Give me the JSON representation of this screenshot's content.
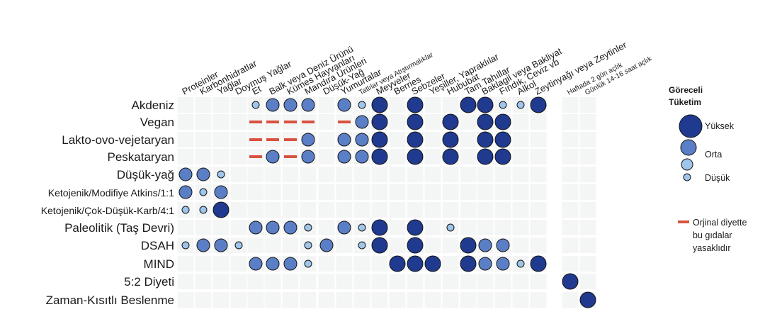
{
  "chart_data": {
    "type": "table",
    "level_scale": {
      "1": "Düşük",
      "2": "Orta",
      "3": "Yüksek"
    },
    "columns": [
      "Proteinler",
      "Karbonhidratlar",
      "Yağlar",
      "Doymuş Yağlar",
      "Et",
      "Balk veya Deniz Ürünü",
      "Kümes Hayvanları",
      "Mandıra Ürünleri",
      "Düşük-Yağ",
      "Yumurtalar",
      "Tatlılar veya Atıştırmalıklar",
      "Meyveler",
      "Berries",
      "Sebzeler",
      "Yeşiller, Yapraklılar",
      "Hububat",
      "Tam Tahıllar",
      "Baklagil veya Bakliyat",
      "Fındık, Ceviz vb",
      "Alkol",
      "Zeytinyağı veya Zeytinler",
      "Haftada 2 gün açlık",
      "Günlük 14-16 saat açlık"
    ],
    "rows": [
      {
        "name": "Akdeniz",
        "values": [
          0,
          0,
          0,
          0,
          1,
          2,
          2,
          2,
          0,
          2,
          1,
          3,
          0,
          3,
          0,
          0,
          3,
          3,
          1,
          1,
          3,
          0,
          0
        ]
      },
      {
        "name": "Vegan",
        "values": [
          0,
          0,
          0,
          0,
          -1,
          -1,
          -1,
          -1,
          0,
          -1,
          2,
          3,
          0,
          3,
          0,
          3,
          0,
          3,
          3,
          0,
          0,
          0,
          0
        ]
      },
      {
        "name": "Lakto-ovo-vejetaryan",
        "values": [
          0,
          0,
          0,
          0,
          -1,
          -1,
          -1,
          2,
          0,
          2,
          2,
          3,
          0,
          3,
          0,
          3,
          0,
          3,
          3,
          0,
          0,
          0,
          0
        ]
      },
      {
        "name": "Peskataryan",
        "values": [
          0,
          0,
          0,
          0,
          -1,
          2,
          -1,
          2,
          0,
          2,
          2,
          3,
          0,
          3,
          0,
          3,
          0,
          3,
          3,
          0,
          0,
          0,
          0
        ]
      },
      {
        "name": "Düşük-yağ",
        "values": [
          2,
          2,
          1,
          0,
          0,
          0,
          0,
          0,
          0,
          0,
          0,
          0,
          0,
          0,
          0,
          0,
          0,
          0,
          0,
          0,
          0,
          0,
          0
        ]
      },
      {
        "name": "Ketojenik/Modifiye Atkins/1:1",
        "values": [
          2,
          1,
          2,
          0,
          0,
          0,
          0,
          0,
          0,
          0,
          0,
          0,
          0,
          0,
          0,
          0,
          0,
          0,
          0,
          0,
          0,
          0,
          0
        ]
      },
      {
        "name": "Ketojenik/Çok-Düşük-Karb/4:1",
        "values": [
          1,
          1,
          3,
          0,
          0,
          0,
          0,
          0,
          0,
          0,
          0,
          0,
          0,
          0,
          0,
          0,
          0,
          0,
          0,
          0,
          0,
          0,
          0
        ]
      },
      {
        "name": "Paleolitik (Taş Devri)",
        "values": [
          0,
          0,
          0,
          0,
          2,
          2,
          2,
          1,
          0,
          2,
          1,
          3,
          0,
          3,
          0,
          1,
          0,
          0,
          0,
          0,
          0,
          0,
          0
        ]
      },
      {
        "name": "DSAH",
        "values": [
          1,
          2,
          2,
          1,
          0,
          0,
          0,
          1,
          2,
          0,
          1,
          3,
          0,
          3,
          0,
          0,
          3,
          2,
          2,
          0,
          0,
          0,
          0
        ]
      },
      {
        "name": "MIND",
        "values": [
          0,
          0,
          0,
          0,
          2,
          2,
          2,
          1,
          0,
          0,
          0,
          0,
          3,
          3,
          3,
          0,
          3,
          2,
          2,
          1,
          3,
          0,
          0
        ]
      },
      {
        "name": "5:2 Diyeti",
        "values": [
          0,
          0,
          0,
          0,
          0,
          0,
          0,
          0,
          0,
          0,
          0,
          0,
          0,
          0,
          0,
          0,
          0,
          0,
          0,
          0,
          0,
          3,
          0
        ]
      },
      {
        "name": "Zaman-Kısıtlı Beslenme",
        "values": [
          0,
          0,
          0,
          0,
          0,
          0,
          0,
          0,
          0,
          0,
          0,
          0,
          0,
          0,
          0,
          0,
          0,
          0,
          0,
          0,
          0,
          0,
          3
        ]
      }
    ],
    "colors": {
      "high": "#203a8f",
      "medium": "#5b7fc6",
      "low": "#9ec5ea",
      "forbidden": "#d9523f",
      "cell": "#f4f5f5"
    }
  },
  "legend": {
    "title_line1": "Göreceli",
    "title_line2": "Tüketim",
    "high": "Yüksek",
    "medium": "Orta",
    "low": "Düşük",
    "forbidden_line1": "Orjinal diyette",
    "forbidden_line2": "bu gıdalar",
    "forbidden_line3": "yasaklıdır"
  }
}
